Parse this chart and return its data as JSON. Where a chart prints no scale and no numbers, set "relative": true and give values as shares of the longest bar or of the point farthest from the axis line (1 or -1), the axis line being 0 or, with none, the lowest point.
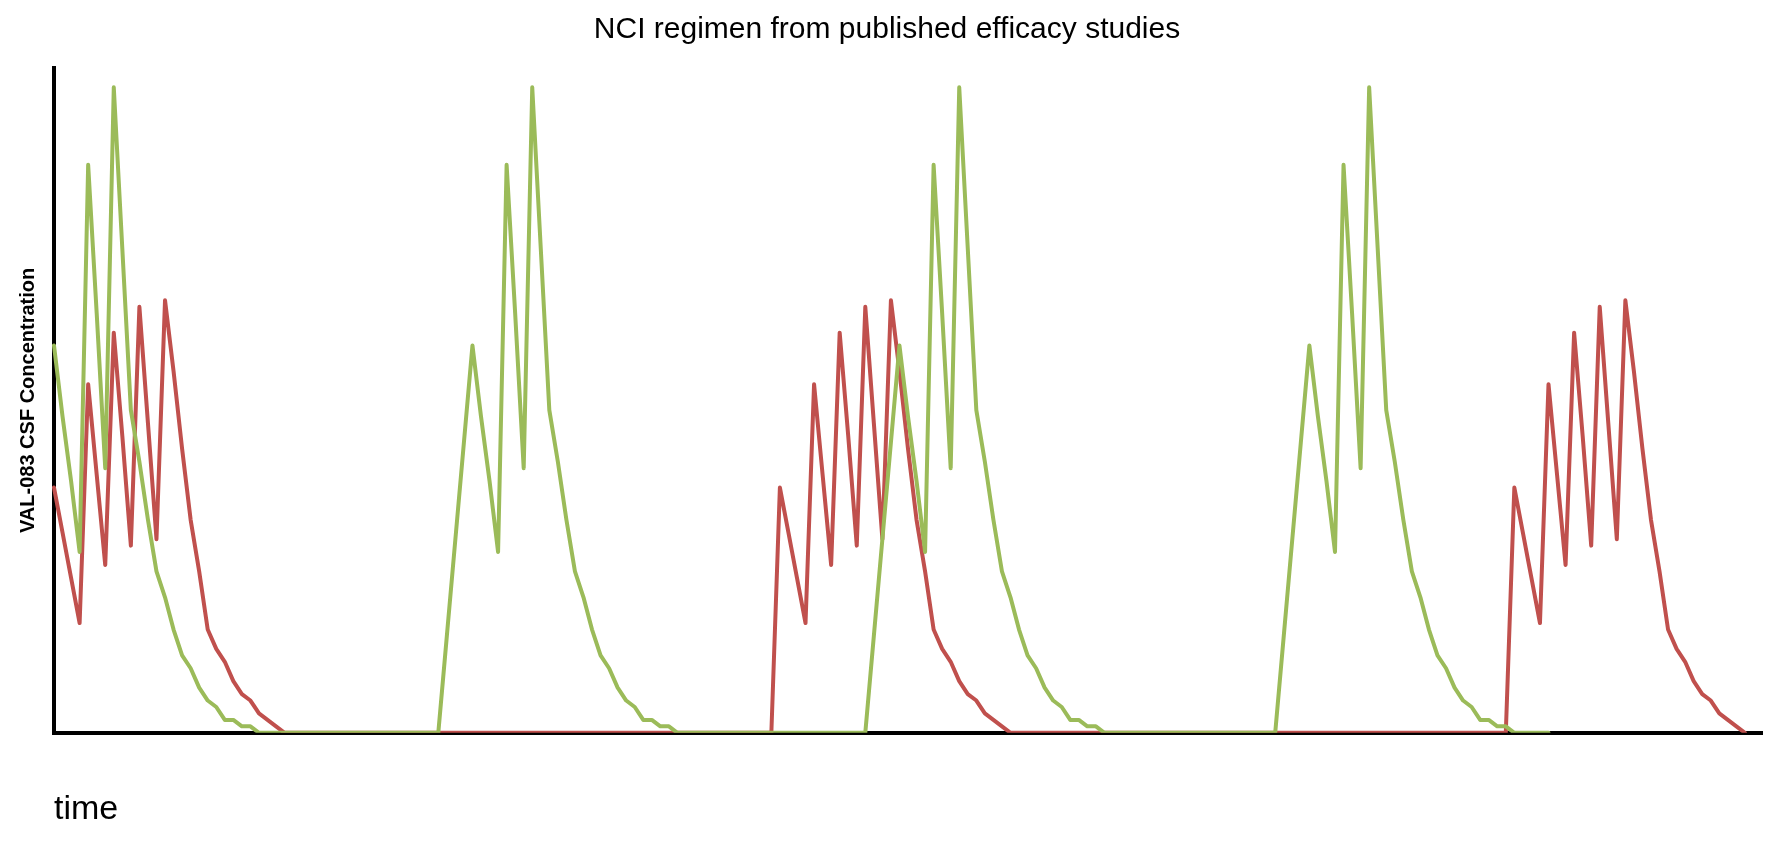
{
  "chart_data": {
    "type": "line",
    "title": "NCI regimen from published efficacy studies",
    "ylabel": "VAL-083 CSF Concentration",
    "xlabel": "time",
    "relative": true,
    "marker": "none",
    "line_style": "solid",
    "categories": [
      null,
      null,
      null,
      null,
      null,
      null,
      null,
      null,
      null,
      null,
      null,
      null,
      null,
      null,
      null,
      null,
      null,
      null,
      null,
      null,
      null,
      null,
      null,
      null,
      null,
      null,
      null,
      null,
      null,
      null,
      null,
      null,
      null,
      null,
      null,
      null,
      null,
      null,
      null,
      null,
      null,
      null,
      null,
      null,
      null,
      null,
      null,
      null,
      null,
      null,
      null,
      null,
      null,
      null,
      null,
      null,
      null,
      null,
      null,
      null,
      null,
      null,
      null,
      null,
      null,
      null,
      null,
      null,
      null,
      null,
      null,
      null,
      null,
      null,
      null,
      null,
      null,
      null,
      null,
      null,
      null,
      null,
      null,
      null,
      null,
      null,
      null,
      null,
      null,
      null,
      null,
      null,
      null,
      null,
      null,
      null,
      null,
      null,
      null,
      null,
      null,
      null,
      null,
      null,
      null,
      null,
      null,
      null,
      null,
      null,
      null,
      null,
      null,
      null,
      null,
      null,
      null,
      null,
      null,
      null,
      null,
      null,
      null,
      null,
      null,
      null,
      null,
      null,
      null,
      null,
      null,
      null,
      null,
      null,
      null,
      null,
      null,
      null,
      null,
      null,
      null,
      null,
      null,
      null,
      null,
      null,
      null,
      null,
      null,
      null,
      null,
      null,
      null,
      null,
      null,
      null,
      null,
      null,
      null,
      null,
      null,
      null,
      null,
      null,
      null,
      null,
      null,
      null,
      null,
      null,
      null,
      null,
      null,
      null,
      null,
      null,
      null,
      null,
      null,
      null,
      null,
      null,
      null,
      null,
      null,
      null,
      null,
      null,
      null,
      null,
      null,
      null,
      null,
      null,
      null,
      null,
      null,
      null,
      null,
      null,
      null
    ],
    "series": [
      {
        "color": "#9bbb59",
        "values": [
          0.6,
          0.49,
          0.39,
          0.28,
          0.88,
          0.65,
          0.41,
          1,
          0.75,
          0.5,
          0.42,
          0.33,
          0.25,
          0.21,
          0.16,
          0.12,
          0.1,
          0.07,
          0.05,
          0.04,
          0.02,
          0.02,
          0.01,
          0.01,
          0,
          0,
          0,
          0,
          0,
          0,
          0,
          0,
          0,
          0,
          0,
          0,
          0,
          0,
          0,
          0,
          0,
          0,
          0,
          0,
          0,
          0,
          0.15,
          0.3,
          0.45,
          0.6,
          0.49,
          0.39,
          0.28,
          0.88,
          0.65,
          0.41,
          1,
          0.75,
          0.5,
          0.42,
          0.33,
          0.25,
          0.21,
          0.16,
          0.12,
          0.1,
          0.07,
          0.05,
          0.04,
          0.02,
          0.02,
          0.01,
          0.01,
          0,
          0,
          0,
          0,
          0,
          0,
          0,
          0,
          0,
          0,
          0,
          0,
          0,
          0,
          0,
          0,
          0,
          0,
          0,
          0,
          0,
          0,
          0,
          0.15,
          0.3,
          0.45,
          0.6,
          0.49,
          0.39,
          0.28,
          0.88,
          0.65,
          0.41,
          1,
          0.75,
          0.5,
          0.42,
          0.33,
          0.25,
          0.21,
          0.16,
          0.12,
          0.1,
          0.07,
          0.05,
          0.04,
          0.02,
          0.02,
          0.01,
          0.01,
          0,
          0,
          0,
          0,
          0,
          0,
          0,
          0,
          0,
          0,
          0,
          0,
          0,
          0,
          0,
          0,
          0,
          0,
          0,
          0,
          0,
          0.15,
          0.3,
          0.45,
          0.6,
          0.49,
          0.39,
          0.28,
          0.88,
          0.65,
          0.41,
          1,
          0.75,
          0.5,
          0.42,
          0.33,
          0.25,
          0.21,
          0.16,
          0.12,
          0.1,
          0.07,
          0.05,
          0.04,
          0.02,
          0.02,
          0.01,
          0.01,
          0,
          0,
          0,
          0,
          0,
          null,
          null,
          null,
          null,
          null,
          null,
          null,
          null,
          null,
          null,
          null,
          null,
          null,
          null,
          null,
          null,
          null,
          null,
          null,
          null,
          null,
          null,
          null,
          null,
          null
        ]
      },
      {
        "color": "#c0504d",
        "values": [
          0.38,
          0.31,
          0.24,
          0.17,
          0.54,
          0.4,
          0.26,
          0.62,
          0.46,
          0.29,
          0.66,
          0.48,
          0.3,
          0.67,
          0.56,
          0.44,
          0.33,
          0.25,
          0.16,
          0.13,
          0.11,
          0.08,
          0.06,
          0.05,
          0.03,
          0.02,
          0.01,
          0,
          0,
          0,
          0,
          0,
          0,
          0,
          0,
          0,
          0,
          0,
          0,
          0,
          0,
          0,
          0,
          0,
          0,
          0,
          0,
          0,
          0,
          0,
          0,
          0,
          0,
          0,
          0,
          0,
          0,
          0,
          0,
          0,
          0,
          0,
          0,
          0,
          0,
          0,
          0,
          0,
          0,
          0,
          0,
          0,
          0,
          0,
          0,
          0,
          0,
          0,
          0,
          0,
          0,
          0,
          0,
          0,
          0,
          0.38,
          0.31,
          0.24,
          0.17,
          0.54,
          0.4,
          0.26,
          0.62,
          0.46,
          0.29,
          0.66,
          0.48,
          0.3,
          0.67,
          0.56,
          0.44,
          0.33,
          0.25,
          0.16,
          0.13,
          0.11,
          0.08,
          0.06,
          0.05,
          0.03,
          0.02,
          0.01,
          0,
          0,
          0,
          0,
          0,
          0,
          0,
          0,
          0,
          0,
          0,
          0,
          0,
          0,
          0,
          0,
          0,
          0,
          0,
          0,
          0,
          0,
          0,
          0,
          0,
          0,
          0,
          0,
          0,
          0,
          0,
          0,
          0,
          0,
          0,
          0,
          0,
          0,
          0,
          0,
          0,
          0,
          0,
          0,
          0,
          0,
          0,
          0,
          0,
          0,
          0,
          0,
          0,
          0,
          0,
          0,
          0,
          0,
          0,
          0.38,
          0.31,
          0.24,
          0.17,
          0.54,
          0.4,
          0.26,
          0.62,
          0.46,
          0.29,
          0.66,
          0.48,
          0.3,
          0.67,
          0.56,
          0.44,
          0.33,
          0.25,
          0.16,
          0.13,
          0.11,
          0.08,
          0.06,
          0.05,
          0.03,
          0.02,
          0.01,
          0,
          null,
          null
        ]
      }
    ]
  }
}
